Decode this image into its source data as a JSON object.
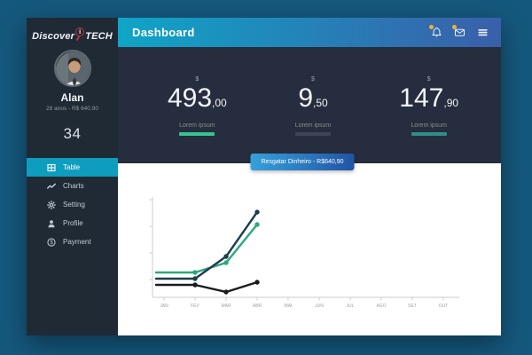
{
  "header": {
    "title": "Dashboard",
    "gradient": [
      "#0FA5C6",
      "#3A5FA9"
    ],
    "badge_color": "#F2B134",
    "icons": [
      "notifications",
      "messages",
      "menu"
    ]
  },
  "sidebar": {
    "logo": {
      "text_left": "Discover",
      "text_i": "i",
      "text_right": "TECH",
      "accent_color": "#C62F3F"
    },
    "user": {
      "name": "Alan",
      "meta": "28 anos - R$ 640,90",
      "score": "34"
    },
    "active_color": "#0E9DBE",
    "menu": [
      {
        "label": "Table",
        "icon": "table-icon",
        "active": true
      },
      {
        "label": "Charts",
        "icon": "charts-icon",
        "active": false
      },
      {
        "label": "Setting",
        "icon": "gear-icon",
        "active": false
      },
      {
        "label": "Profile",
        "icon": "person-icon",
        "active": false
      },
      {
        "label": "Payment",
        "icon": "payment-icon",
        "active": false
      }
    ]
  },
  "stats": [
    {
      "currency": "$",
      "amount": "493",
      "decimals": ",00",
      "label": "Lorem ipsum",
      "bar_color": "#35C492"
    },
    {
      "currency": "$",
      "amount": "9",
      "decimals": ",50",
      "label": "Lorem ipsum",
      "bar_color": "#3E4557"
    },
    {
      "currency": "$",
      "amount": "147",
      "decimals": ",90",
      "label": "Lorem ipsum",
      "bar_color": "#2E8F86"
    }
  ],
  "action_button": {
    "label": "Resgatar Dinheiro - R$640,90",
    "gradient": [
      "#35A1DB",
      "#2254A5"
    ]
  },
  "chart_data": {
    "type": "line",
    "categories": [
      "JAN",
      "FEV",
      "MAR",
      "ABR",
      "MAI",
      "JUN",
      "JUL",
      "AGO",
      "SET",
      "OUT"
    ],
    "series": [
      {
        "name": "green-series",
        "color": "#2BA87D",
        "values": [
          28,
          28,
          39,
          82,
          null,
          null,
          null,
          null,
          null,
          null
        ]
      },
      {
        "name": "navy-series",
        "color": "#1E3D4D",
        "values": [
          21,
          21,
          46,
          96,
          null,
          null,
          null,
          null,
          null,
          null
        ]
      },
      {
        "name": "black-series",
        "color": "#1A1B1D",
        "values": [
          14,
          14,
          6,
          17,
          null,
          null,
          null,
          null,
          null,
          null
        ]
      }
    ],
    "title": "",
    "xlabel": "",
    "ylabel": "",
    "ylim": [
      0,
      110
    ],
    "y_ticks": [
      20,
      50,
      80,
      110
    ],
    "y_tick_labels_visible": false,
    "grid": false,
    "legend": false,
    "marker_from_index": 1,
    "axis_color": "#C9CED3",
    "label_color": "#9BA1A8"
  }
}
